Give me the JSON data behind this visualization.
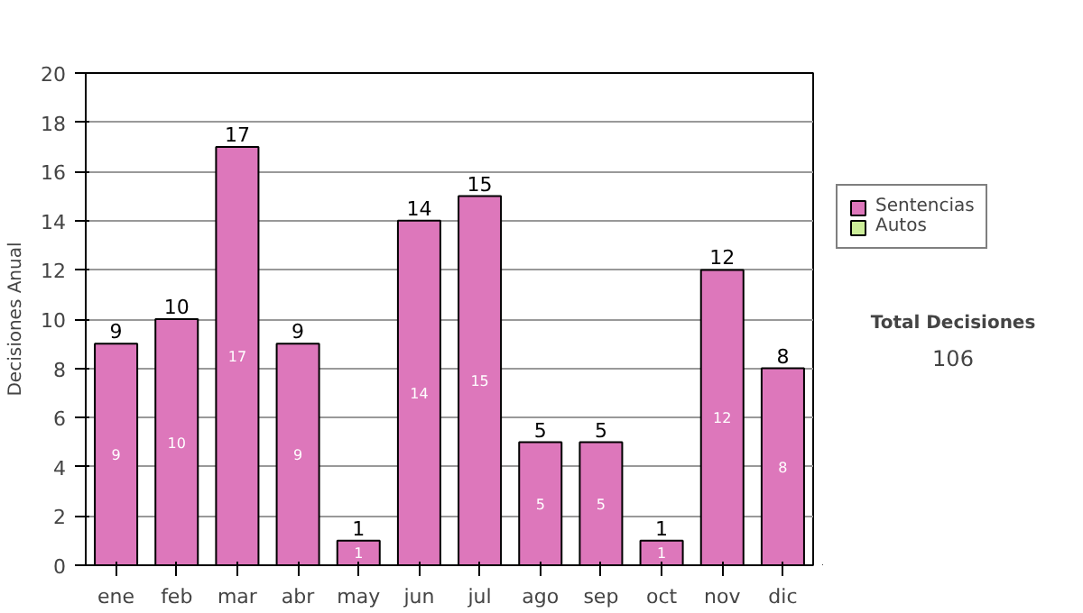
{
  "chart_data": {
    "type": "bar",
    "ylabel": "Decisiones Anual",
    "categories": [
      "ene",
      "feb",
      "mar",
      "abr",
      "may",
      "jun",
      "jul",
      "ago",
      "sep",
      "oct",
      "nov",
      "dic"
    ],
    "series": [
      {
        "name": "Sentencias",
        "color": "#dd77bb",
        "values": [
          9,
          10,
          17,
          9,
          1,
          14,
          15,
          5,
          5,
          1,
          12,
          8
        ]
      },
      {
        "name": "Autos",
        "color": "#ccee99",
        "values": [
          null,
          null,
          null,
          null,
          null,
          null,
          null,
          null,
          null,
          null,
          null,
          null
        ]
      }
    ],
    "stacked": true,
    "data_labels": true,
    "totals": [
      "9",
      "10",
      "17",
      "9",
      "1",
      "14",
      "15",
      "5",
      "5",
      "1",
      "12",
      "8"
    ],
    "ylim": [
      0,
      20
    ],
    "yticks": [
      0,
      2,
      4,
      6,
      8,
      10,
      12,
      14,
      16,
      18,
      20
    ],
    "grid": "y",
    "legend": "right",
    "annotations": [
      "Total Decisiones",
      "106"
    ]
  }
}
